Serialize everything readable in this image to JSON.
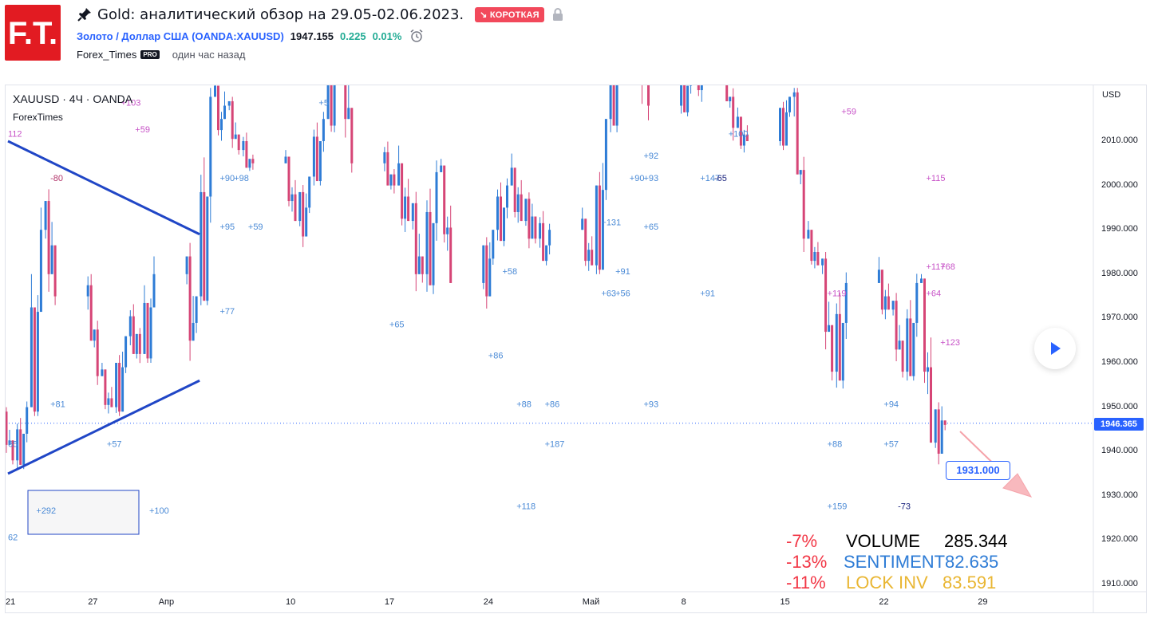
{
  "header": {
    "logo_text": "F.T.",
    "title": "Gold: аналитический обзор на 29.05-02.06.2023.",
    "badge": "↘ КОРОТКАЯ",
    "symbol_name": "Золото / Доллар США (OANDA:XAUUSD)",
    "last_price": "1947.155",
    "change": "0.225",
    "change_pct": "0.01%",
    "author": "Forex_Times",
    "pro_badge": "PRO",
    "time_ago": "один час назад"
  },
  "legend": {
    "symbol": "XAUUSD · 4Ч · OANDA",
    "indicator": "ForexTimes"
  },
  "colors": {
    "up": "#2e7cd6",
    "down": "#d64576",
    "brand": "#e21b22",
    "accent": "#2962ff"
  },
  "chart_data": {
    "type": "candlestick",
    "currency": "USD",
    "ylim": [
      1905,
      2020
    ],
    "y_ticks": [
      "2010.000",
      "2000.000",
      "1990.000",
      "1980.000",
      "1970.000",
      "1960.000",
      "1950.000",
      "1940.000",
      "1930.000",
      "1920.000",
      "1910.000"
    ],
    "x_ticks": [
      "21",
      "27",
      "Апр",
      "10",
      "17",
      "24",
      "Май",
      "8",
      "15",
      "22",
      "29"
    ],
    "current_price": "1946.365",
    "target_price": "1931.000",
    "candles_daily": [
      {
        "date": "03-21",
        "o": 1948,
        "h": 1950,
        "l": 1935,
        "c": 1938
      },
      {
        "date": "03-22",
        "o": 1938,
        "h": 1952,
        "l": 1936,
        "c": 1950
      },
      {
        "date": "03-23",
        "o": 1950,
        "h": 1995,
        "l": 1948,
        "c": 1990
      },
      {
        "date": "03-24",
        "o": 1990,
        "h": 2003,
        "l": 1970,
        "c": 1975
      },
      {
        "date": "03-27",
        "o": 1975,
        "h": 1980,
        "l": 1955,
        "c": 1957
      },
      {
        "date": "03-28",
        "o": 1957,
        "h": 1960,
        "l": 1944,
        "c": 1950
      },
      {
        "date": "03-29",
        "o": 1950,
        "h": 1970,
        "l": 1948,
        "c": 1966
      },
      {
        "date": "03-30",
        "o": 1966,
        "h": 1975,
        "l": 1958,
        "c": 1962
      },
      {
        "date": "03-31",
        "o": 1962,
        "h": 1985,
        "l": 1960,
        "c": 1980
      },
      {
        "date": "04-03",
        "o": 1980,
        "h": 1988,
        "l": 1950,
        "c": 1975
      },
      {
        "date": "04-04",
        "o": 1975,
        "h": 2022,
        "l": 1973,
        "c": 2020
      },
      {
        "date": "04-05",
        "o": 2020,
        "h": 2025,
        "l": 2005,
        "c": 2018
      },
      {
        "date": "04-06",
        "o": 2018,
        "h": 2020,
        "l": 2003,
        "c": 2008
      },
      {
        "date": "04-07",
        "o": 2008,
        "h": 2012,
        "l": 2000,
        "c": 2005
      },
      {
        "date": "04-10",
        "o": 2005,
        "h": 2008,
        "l": 1988,
        "c": 1992
      },
      {
        "date": "04-11",
        "o": 1992,
        "h": 2005,
        "l": 1985,
        "c": 2002
      },
      {
        "date": "04-12",
        "o": 2002,
        "h": 2020,
        "l": 2000,
        "c": 2015
      },
      {
        "date": "04-13",
        "o": 2015,
        "h": 2035,
        "l": 2012,
        "c": 2030
      },
      {
        "date": "04-14",
        "o": 2030,
        "h": 2035,
        "l": 2000,
        "c": 2005
      },
      {
        "date": "04-17",
        "o": 2005,
        "h": 2010,
        "l": 1995,
        "c": 2000
      },
      {
        "date": "04-18",
        "o": 2000,
        "h": 2010,
        "l": 1985,
        "c": 1992
      },
      {
        "date": "04-19",
        "o": 1992,
        "h": 2000,
        "l": 1968,
        "c": 1980
      },
      {
        "date": "04-20",
        "o": 1980,
        "h": 2008,
        "l": 1975,
        "c": 2003
      },
      {
        "date": "04-21",
        "o": 2003,
        "h": 2006,
        "l": 1975,
        "c": 1978
      },
      {
        "date": "04-24",
        "o": 1978,
        "h": 1995,
        "l": 1972,
        "c": 1990
      },
      {
        "date": "04-25",
        "o": 1990,
        "h": 2005,
        "l": 1985,
        "c": 2000
      },
      {
        "date": "04-26",
        "o": 2000,
        "h": 2008,
        "l": 1988,
        "c": 1992
      },
      {
        "date": "04-27",
        "o": 1992,
        "h": 2002,
        "l": 1984,
        "c": 1988
      },
      {
        "date": "04-28",
        "o": 1988,
        "h": 1995,
        "l": 1978,
        "c": 1990
      },
      {
        "date": "05-01",
        "o": 1990,
        "h": 1995,
        "l": 1976,
        "c": 1982
      },
      {
        "date": "05-02",
        "o": 1982,
        "h": 2018,
        "l": 1980,
        "c": 2015
      },
      {
        "date": "05-03",
        "o": 2015,
        "h": 2040,
        "l": 2012,
        "c": 2037
      },
      {
        "date": "05-04",
        "o": 2037,
        "h": 2078,
        "l": 2030,
        "c": 2050
      },
      {
        "date": "05-05",
        "o": 2050,
        "h": 2055,
        "l": 2000,
        "c": 2018
      },
      {
        "date": "05-08",
        "o": 2018,
        "h": 2030,
        "l": 2015,
        "c": 2025
      },
      {
        "date": "05-09",
        "o": 2025,
        "h": 2040,
        "l": 2018,
        "c": 2032
      },
      {
        "date": "05-10",
        "o": 2032,
        "h": 2040,
        "l": 2020,
        "c": 2030
      },
      {
        "date": "05-11",
        "o": 2030,
        "h": 2032,
        "l": 2008,
        "c": 2013
      },
      {
        "date": "05-12",
        "o": 2013,
        "h": 2018,
        "l": 2005,
        "c": 2010
      },
      {
        "date": "05-15",
        "o": 2010,
        "h": 2025,
        "l": 2008,
        "c": 2020
      },
      {
        "date": "05-16",
        "o": 2020,
        "h": 2022,
        "l": 1985,
        "c": 1988
      },
      {
        "date": "05-17",
        "o": 1988,
        "h": 1992,
        "l": 1978,
        "c": 1982
      },
      {
        "date": "05-18",
        "o": 1982,
        "h": 1985,
        "l": 1952,
        "c": 1958
      },
      {
        "date": "05-19",
        "o": 1958,
        "h": 1984,
        "l": 1954,
        "c": 1978
      },
      {
        "date": "05-22",
        "o": 1978,
        "h": 1984,
        "l": 1966,
        "c": 1972
      },
      {
        "date": "05-23",
        "o": 1972,
        "h": 1976,
        "l": 1954,
        "c": 1958
      },
      {
        "date": "05-24",
        "o": 1958,
        "h": 1982,
        "l": 1956,
        "c": 1978
      },
      {
        "date": "05-25",
        "o": 1978,
        "h": 1980,
        "l": 1938,
        "c": 1942
      },
      {
        "date": "05-26",
        "o": 1942,
        "h": 1957,
        "l": 1937,
        "c": 1946
      }
    ],
    "trendlines": [
      {
        "from": {
          "date": "03-21",
          "y": 2010
        },
        "to": {
          "date": "04-03",
          "y": 1989
        }
      },
      {
        "from": {
          "date": "03-21",
          "y": 1935
        },
        "to": {
          "date": "04-03",
          "y": 1956
        }
      }
    ],
    "annotations": [
      {
        "text": "+103",
        "date": "03-29",
        "y": 2018,
        "color": "#c752c7"
      },
      {
        "text": "+59",
        "date": "03-30",
        "y": 2012,
        "color": "#c752c7"
      },
      {
        "text": "112",
        "date": "03-21",
        "y": 2011,
        "color": "#c752c7"
      },
      {
        "text": "-80",
        "date": "03-24",
        "y": 2001,
        "color": "#b2356b"
      },
      {
        "text": "+90",
        "date": "04-05",
        "y": 2001,
        "color": "#4a8ad6"
      },
      {
        "text": "+98",
        "date": "04-06",
        "y": 2001,
        "color": "#4a8ad6"
      },
      {
        "text": "+95",
        "date": "04-05",
        "y": 1990,
        "color": "#4a8ad6"
      },
      {
        "text": "+59",
        "date": "04-07",
        "y": 1990,
        "color": "#4a8ad6"
      },
      {
        "text": "+77",
        "date": "04-05",
        "y": 1971,
        "color": "#4a8ad6"
      },
      {
        "text": "+81",
        "date": "03-24",
        "y": 1950,
        "color": "#4a8ad6"
      },
      {
        "text": "65",
        "date": "03-21",
        "y": 1941,
        "color": "#4a8ad6"
      },
      {
        "text": "+57",
        "date": "03-28",
        "y": 1941,
        "color": "#4a8ad6"
      },
      {
        "text": "+292",
        "date": "03-23",
        "y": 1926,
        "color": "#4a8ad6"
      },
      {
        "text": "+100",
        "date": "03-31",
        "y": 1926,
        "color": "#4a8ad6"
      },
      {
        "text": "62",
        "date": "03-21",
        "y": 1920,
        "color": "#4a8ad6"
      },
      {
        "text": "+5",
        "date": "04-12",
        "y": 2018,
        "color": "#4a8ad6"
      },
      {
        "text": "+65",
        "date": "04-17",
        "y": 1968,
        "color": "#4a8ad6"
      },
      {
        "text": "+58",
        "date": "04-25",
        "y": 1980,
        "color": "#4a8ad6"
      },
      {
        "text": "+86",
        "date": "04-24",
        "y": 1961,
        "color": "#4a8ad6"
      },
      {
        "text": "+88",
        "date": "04-26",
        "y": 1950,
        "color": "#4a8ad6"
      },
      {
        "text": "+86",
        "date": "04-28",
        "y": 1950,
        "color": "#4a8ad6"
      },
      {
        "text": "+187",
        "date": "04-28",
        "y": 1941,
        "color": "#4a8ad6"
      },
      {
        "text": "+118",
        "date": "04-26",
        "y": 1927,
        "color": "#4a8ad6"
      },
      {
        "text": "+131",
        "date": "05-02",
        "y": 1991,
        "color": "#4a8ad6"
      },
      {
        "text": "+91",
        "date": "05-03",
        "y": 1980,
        "color": "#4a8ad6"
      },
      {
        "text": "+63",
        "date": "05-02",
        "y": 1975,
        "color": "#4a8ad6"
      },
      {
        "text": "+56",
        "date": "05-03",
        "y": 1975,
        "color": "#4a8ad6"
      },
      {
        "text": "+90",
        "date": "05-04",
        "y": 2001,
        "color": "#4a8ad6"
      },
      {
        "text": "+93",
        "date": "05-05",
        "y": 2001,
        "color": "#4a8ad6"
      },
      {
        "text": "+65",
        "date": "05-05",
        "y": 1990,
        "color": "#4a8ad6"
      },
      {
        "text": "+93",
        "date": "05-05",
        "y": 1950,
        "color": "#4a8ad6"
      },
      {
        "text": "+92",
        "date": "05-05",
        "y": 2006,
        "color": "#4a8ad6"
      },
      {
        "text": "+147",
        "date": "05-09",
        "y": 2001,
        "color": "#4a8ad6"
      },
      {
        "text": "-65",
        "date": "05-10",
        "y": 2001,
        "color": "#1a237e"
      },
      {
        "text": "+91",
        "date": "05-09",
        "y": 1975,
        "color": "#4a8ad6"
      },
      {
        "text": "+100",
        "date": "05-11",
        "y": 2011,
        "color": "#4a8ad6"
      },
      {
        "text": "+59",
        "date": "05-19",
        "y": 2016,
        "color": "#c752c7"
      },
      {
        "text": "+115",
        "date": "05-25",
        "y": 2001,
        "color": "#c752c7"
      },
      {
        "text": "+117",
        "date": "05-25",
        "y": 1981,
        "color": "#c752c7"
      },
      {
        "text": "+68",
        "date": "05-26",
        "y": 1981,
        "color": "#c752c7"
      },
      {
        "text": "+64",
        "date": "05-25",
        "y": 1975,
        "color": "#c752c7"
      },
      {
        "text": "+119",
        "date": "05-18",
        "y": 1975,
        "color": "#c752c7"
      },
      {
        "text": "+123",
        "date": "05-26",
        "y": 1964,
        "color": "#c752c7"
      },
      {
        "text": "+94",
        "date": "05-22",
        "y": 1950,
        "color": "#4a8ad6"
      },
      {
        "text": "+88",
        "date": "05-18",
        "y": 1941,
        "color": "#4a8ad6"
      },
      {
        "text": "+57",
        "date": "05-22",
        "y": 1941,
        "color": "#4a8ad6"
      },
      {
        "text": "+159",
        "date": "05-18",
        "y": 1927,
        "color": "#4a8ad6"
      },
      {
        "text": "-73",
        "date": "05-23",
        "y": 1927,
        "color": "#1a237e"
      }
    ]
  },
  "stats": [
    {
      "pct": "-7%",
      "label": "VOLUME",
      "value": "285.344"
    },
    {
      "pct": "-13%",
      "label": "SENTIMENT",
      "value": "82.635"
    },
    {
      "pct": "-11%",
      "label": "LOCK INV",
      "value": "83.591"
    }
  ]
}
